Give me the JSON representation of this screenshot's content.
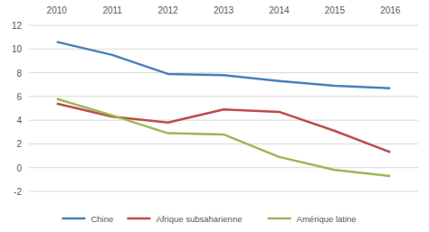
{
  "chart_data": {
    "type": "line",
    "categories": [
      "2010",
      "2011",
      "2012",
      "2013",
      "2014",
      "2015",
      "2016"
    ],
    "series": [
      {
        "name": "Chine",
        "color": "#4a7ebb",
        "values": [
          10.6,
          9.5,
          7.9,
          7.8,
          7.3,
          6.9,
          6.7
        ]
      },
      {
        "name": "Afrique subsaharienne",
        "color": "#be4b48",
        "values": [
          5.4,
          4.3,
          3.8,
          4.9,
          4.7,
          3.1,
          1.3
        ]
      },
      {
        "name": "Amérique latine",
        "color": "#98b954",
        "values": [
          5.8,
          4.4,
          2.9,
          2.8,
          0.9,
          -0.2,
          -0.7
        ]
      }
    ],
    "ylim": [
      -2,
      12
    ],
    "yticks": [
      -2,
      0,
      2,
      4,
      6,
      8,
      10,
      12
    ],
    "grid": true,
    "legend": "bottom"
  }
}
